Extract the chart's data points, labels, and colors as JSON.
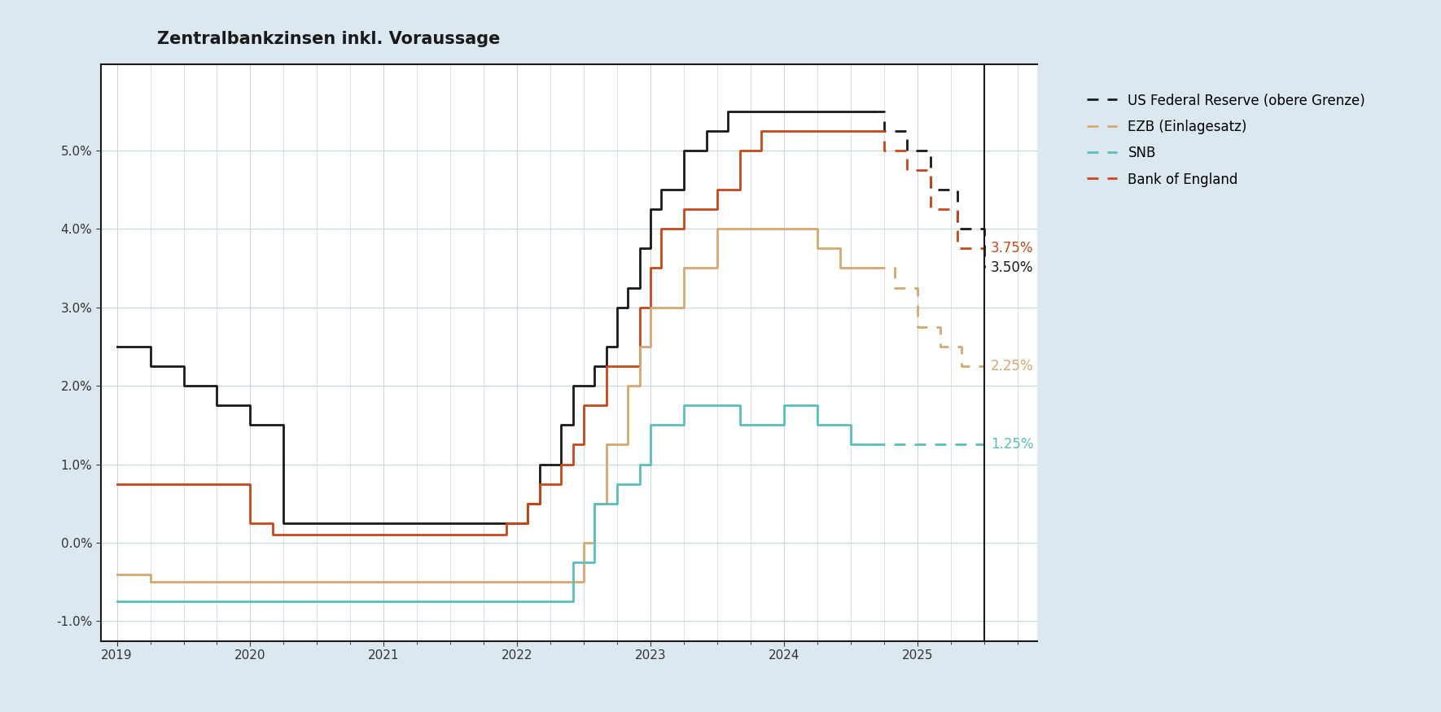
{
  "title": "Zentralbankzinsen inkl. Voraussage",
  "background_color": "#dce8ef",
  "plot_bg_color": "#ffffff",
  "grid_color": "#c8d8df",
  "title_fontsize": 15,
  "legend_labels": [
    "US Federal Reserve (obere Grenze)",
    "EZB (Einlagesatz)",
    "SNB",
    "Bank of England"
  ],
  "colors": {
    "fed": "#1a1a1a",
    "ezb": "#d4a870",
    "snb": "#5bbfbb",
    "boe": "#c8481a"
  },
  "end_labels": {
    "boe": {
      "value": "3.75%",
      "color": "#c8481a"
    },
    "fed": {
      "value": "3.50%",
      "color": "#1a1a1a"
    },
    "ezb": {
      "value": "2.25%",
      "color": "#d4a870"
    },
    "snb": {
      "value": "1.25%",
      "color": "#5bbfbb"
    }
  },
  "ylim": [
    -1.25,
    6.1
  ],
  "yticks": [
    -1.0,
    0.0,
    1.0,
    2.0,
    3.0,
    4.0,
    5.0
  ],
  "xlim_start": 2018.88,
  "xlim_end": 2025.9,
  "forecast_start": 2024.67,
  "fed": {
    "x": [
      2019.0,
      2019.25,
      2019.5,
      2019.75,
      2020.0,
      2020.25,
      2020.5,
      2020.75,
      2021.0,
      2021.25,
      2021.5,
      2021.75,
      2022.0,
      2022.08,
      2022.17,
      2022.33,
      2022.42,
      2022.58,
      2022.67,
      2022.75,
      2022.83,
      2022.92,
      2023.0,
      2023.08,
      2023.25,
      2023.42,
      2023.58,
      2023.83,
      2024.0,
      2024.25,
      2024.5,
      2024.67,
      2024.75,
      2024.92,
      2025.1,
      2025.3,
      2025.5
    ],
    "y": [
      2.5,
      2.25,
      2.0,
      1.75,
      1.5,
      0.25,
      0.25,
      0.25,
      0.25,
      0.25,
      0.25,
      0.25,
      0.25,
      0.5,
      1.0,
      1.5,
      2.0,
      2.25,
      2.5,
      3.0,
      3.25,
      3.75,
      4.25,
      4.5,
      5.0,
      5.25,
      5.5,
      5.5,
      5.5,
      5.5,
      5.5,
      5.5,
      5.25,
      5.0,
      4.5,
      4.0,
      3.5
    ]
  },
  "ezb": {
    "x": [
      2019.0,
      2019.25,
      2019.5,
      2019.75,
      2020.0,
      2020.25,
      2020.5,
      2020.75,
      2021.0,
      2021.25,
      2021.5,
      2021.75,
      2022.0,
      2022.25,
      2022.5,
      2022.58,
      2022.67,
      2022.83,
      2022.92,
      2023.0,
      2023.25,
      2023.5,
      2023.67,
      2023.83,
      2024.0,
      2024.25,
      2024.42,
      2024.67,
      2024.83,
      2025.0,
      2025.17,
      2025.33,
      2025.5
    ],
    "y": [
      -0.4,
      -0.5,
      -0.5,
      -0.5,
      -0.5,
      -0.5,
      -0.5,
      -0.5,
      -0.5,
      -0.5,
      -0.5,
      -0.5,
      -0.5,
      -0.5,
      0.0,
      0.5,
      1.25,
      2.0,
      2.5,
      3.0,
      3.5,
      4.0,
      4.0,
      4.0,
      4.0,
      3.75,
      3.5,
      3.5,
      3.25,
      2.75,
      2.5,
      2.25,
      2.25
    ]
  },
  "snb": {
    "x": [
      2019.0,
      2019.25,
      2019.5,
      2019.75,
      2020.0,
      2020.25,
      2020.5,
      2020.75,
      2021.0,
      2021.25,
      2021.5,
      2021.75,
      2022.0,
      2022.25,
      2022.42,
      2022.58,
      2022.75,
      2022.92,
      2023.0,
      2023.25,
      2023.5,
      2023.67,
      2024.0,
      2024.25,
      2024.5,
      2024.67,
      2025.5
    ],
    "y": [
      -0.75,
      -0.75,
      -0.75,
      -0.75,
      -0.75,
      -0.75,
      -0.75,
      -0.75,
      -0.75,
      -0.75,
      -0.75,
      -0.75,
      -0.75,
      -0.75,
      -0.25,
      0.5,
      0.75,
      1.0,
      1.5,
      1.75,
      1.75,
      1.5,
      1.75,
      1.5,
      1.25,
      1.25,
      1.25
    ]
  },
  "boe": {
    "x": [
      2019.0,
      2019.25,
      2019.5,
      2019.75,
      2020.0,
      2020.17,
      2020.25,
      2020.5,
      2020.75,
      2021.0,
      2021.25,
      2021.5,
      2021.75,
      2021.92,
      2022.0,
      2022.08,
      2022.17,
      2022.33,
      2022.42,
      2022.5,
      2022.67,
      2022.75,
      2022.92,
      2023.0,
      2023.08,
      2023.25,
      2023.5,
      2023.67,
      2023.83,
      2024.0,
      2024.25,
      2024.5,
      2024.67,
      2024.75,
      2024.92,
      2025.1,
      2025.3,
      2025.5
    ],
    "y": [
      0.75,
      0.75,
      0.75,
      0.75,
      0.25,
      0.1,
      0.1,
      0.1,
      0.1,
      0.1,
      0.1,
      0.1,
      0.1,
      0.25,
      0.25,
      0.5,
      0.75,
      1.0,
      1.25,
      1.75,
      2.25,
      2.25,
      3.0,
      3.5,
      4.0,
      4.25,
      4.5,
      5.0,
      5.25,
      5.25,
      5.25,
      5.25,
      5.25,
      5.0,
      4.75,
      4.25,
      3.75,
      3.75
    ]
  }
}
